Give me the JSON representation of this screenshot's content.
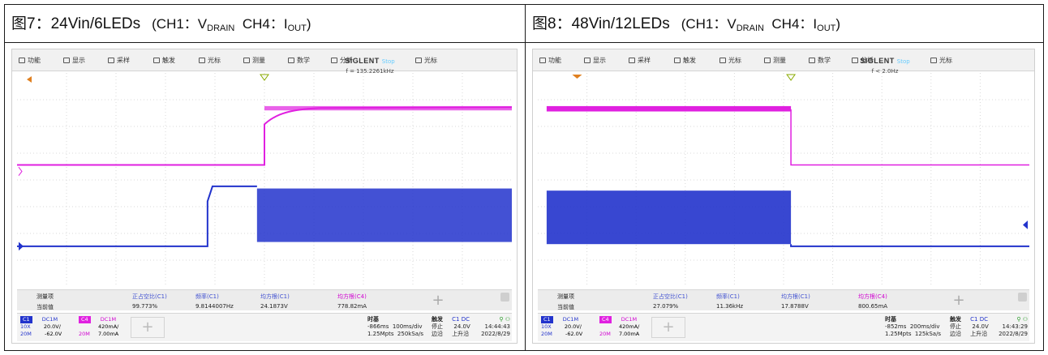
{
  "panels": [
    {
      "caption": {
        "main": "图7：24Vin/6LEDs",
        "open": "(CH1：V",
        "sub1": "DRAIN",
        "mid": "  CH4：I",
        "sub2": "OUT",
        "close": ")"
      },
      "menu": [
        "功能",
        "显示",
        "采样",
        "触发",
        "光标",
        "测量",
        "数学",
        "分析",
        "光标"
      ],
      "brand": {
        "name": "SIGLENT",
        "status": "Stop",
        "freq": "f = 135.2261kHz"
      },
      "measurements": {
        "header": {
          "name": "测量项",
          "value": "当前值"
        },
        "items": [
          {
            "name": "正占空比(C1)",
            "value": "99.773%"
          },
          {
            "name": "频率(C1)",
            "value": "9.8144007Hz"
          },
          {
            "name": "均方根(C1)",
            "value": "24.1873V"
          },
          {
            "name": "均方根(C4)",
            "value": "778.82mA"
          }
        ]
      },
      "channels": {
        "c1": {
          "tag": "C1",
          "coupling": "DC1M",
          "probe": "10X",
          "scale": "20.0V/",
          "bw": "20M",
          "offset": "-62.0V"
        },
        "c4": {
          "tag": "C4",
          "coupling": "DC1M",
          "scale": "420mA/",
          "bw": "20M",
          "offset": "7.00mA"
        }
      },
      "timebase": {
        "label": "时基",
        "delay": "-866ms",
        "div": "100ms/div",
        "points": "1.25Mpts",
        "rate": "250kSa/s"
      },
      "trigger": {
        "label": "触发",
        "src": "C1 DC",
        "state": "停止",
        "level": "24.0V",
        "mode": "边沿",
        "slope": "上升沿"
      },
      "clock": {
        "time": "14:44:43",
        "date": "2022/8/29"
      },
      "colors": {
        "ch1": "#2233cc",
        "ch4": "#e020e0"
      }
    },
    {
      "caption": {
        "main": "图8：48Vin/12LEDs",
        "open": "(CH1：V",
        "sub1": "DRAIN",
        "mid": "  CH4：I",
        "sub2": "OUT",
        "close": ")"
      },
      "menu": [
        "功能",
        "显示",
        "采样",
        "触发",
        "光标",
        "测量",
        "数学",
        "分析",
        "光标"
      ],
      "brand": {
        "name": "SIGLENT",
        "status": "Stop",
        "freq": "f < 2.0Hz"
      },
      "measurements": {
        "header": {
          "name": "测量项",
          "value": "当前值"
        },
        "items": [
          {
            "name": "正占空比(C1)",
            "value": "27.079%"
          },
          {
            "name": "频率(C1)",
            "value": "11.36kHz"
          },
          {
            "name": "均方根(C1)",
            "value": "17.8788V"
          },
          {
            "name": "均方根(C4)",
            "value": "800.65mA"
          }
        ]
      },
      "channels": {
        "c1": {
          "tag": "C1",
          "coupling": "DC1M",
          "probe": "10X",
          "scale": "20.0V/",
          "bw": "20M",
          "offset": "-62.0V"
        },
        "c4": {
          "tag": "C4",
          "coupling": "DC1M",
          "scale": "420mA/",
          "bw": "20M",
          "offset": "7.00mA"
        }
      },
      "timebase": {
        "label": "时基",
        "delay": "-852ms",
        "div": "200ms/div",
        "points": "1.25Mpts",
        "rate": "125kSa/s"
      },
      "trigger": {
        "label": "触发",
        "src": "C1 DC",
        "state": "停止",
        "level": "24.0V",
        "mode": "边沿",
        "slope": "上升沿"
      },
      "clock": {
        "time": "14:43:29",
        "date": "2022/8/29"
      },
      "colors": {
        "ch1": "#2233cc",
        "ch4": "#e020e0"
      }
    }
  ]
}
